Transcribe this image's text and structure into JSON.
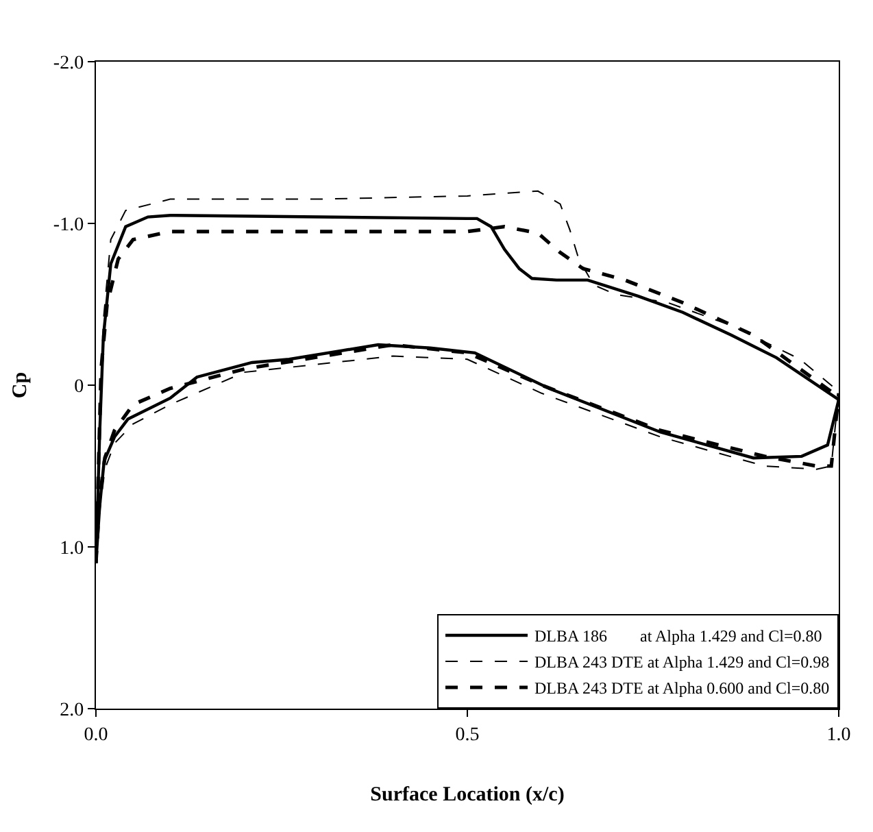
{
  "chart_data": {
    "type": "line",
    "xlabel": "Surface Location (x/c)",
    "ylabel": "Cp",
    "xlim": [
      0,
      1
    ],
    "ylim": [
      2.0,
      -2.0
    ],
    "xticks": [
      {
        "value": 0,
        "label": "0.0"
      },
      {
        "value": 0.5,
        "label": "0.5"
      },
      {
        "value": 1,
        "label": "1.0"
      }
    ],
    "yticks": [
      {
        "value": -2,
        "label": "-2.0"
      },
      {
        "value": -1,
        "label": "-1.0"
      },
      0,
      {
        "value": 1,
        "label": "1.0"
      },
      {
        "value": 2,
        "label": "2.0"
      }
    ],
    "legend": "bottom right",
    "marker": "none",
    "series": [
      {
        "name": "DLBA 186        at Alpha 1.429 and Cl=0.80",
        "color": "#000000",
        "line_style": "solid",
        "x": [
          0.0,
          0.005,
          0.01,
          0.02,
          0.04,
          0.07,
          0.1,
          0.3,
          0.5,
          0.513,
          0.532,
          0.55,
          0.57,
          0.587,
          0.62,
          0.662,
          0.73,
          0.79,
          0.855,
          0.916,
          1.0
        ],
        "values": [
          1.1,
          0.3,
          -0.3,
          -0.75,
          -0.98,
          -1.04,
          -1.05,
          -1.04,
          -1.03,
          -1.03,
          -0.98,
          -0.84,
          -0.72,
          -0.66,
          -0.65,
          -0.65,
          -0.55,
          -0.45,
          -0.31,
          -0.17,
          0.09
        ]
      },
      {
        "color": "#000000",
        "line_style": "solid",
        "x": [
          0.0,
          0.005,
          0.011,
          0.025,
          0.043,
          0.1,
          0.136,
          0.21,
          0.26,
          0.38,
          0.45,
          0.51,
          0.61,
          0.76,
          0.885,
          0.95,
          0.985,
          1.0
        ],
        "values": [
          1.1,
          0.75,
          0.47,
          0.32,
          0.21,
          0.08,
          -0.05,
          -0.14,
          -0.16,
          -0.25,
          -0.23,
          -0.2,
          0.02,
          0.29,
          0.45,
          0.44,
          0.37,
          0.09
        ]
      },
      {
        "name": "DLBA 243 DTE at Alpha 1.429 and Cl=0.98",
        "color": "#000000",
        "line_style": "dashed",
        "x": [
          0.0,
          0.005,
          0.01,
          0.02,
          0.04,
          0.1,
          0.3,
          0.5,
          0.595,
          0.625,
          0.638,
          0.65,
          0.67,
          0.7,
          0.77,
          0.855,
          0.948,
          1.0
        ],
        "values": [
          1.1,
          0.3,
          -0.4,
          -0.9,
          -1.08,
          -1.15,
          -1.15,
          -1.17,
          -1.2,
          -1.12,
          -0.96,
          -0.78,
          -0.62,
          -0.56,
          -0.51,
          -0.37,
          -0.16,
          0.04
        ]
      },
      {
        "color": "#000000",
        "line_style": "dashed",
        "x": [
          0.0,
          0.005,
          0.012,
          0.025,
          0.05,
          0.1,
          0.2,
          0.4,
          0.5,
          0.6,
          0.76,
          0.9,
          0.97,
          0.99,
          1.0
        ],
        "values": [
          1.1,
          0.78,
          0.52,
          0.36,
          0.24,
          0.12,
          -0.08,
          -0.18,
          -0.16,
          0.05,
          0.32,
          0.5,
          0.52,
          0.5,
          0.04
        ]
      },
      {
        "name": "DLBA 243 DTE at Alpha 0.600 and Cl=0.80",
        "color": "#000000",
        "line_style": "dashed",
        "x": [
          0.0,
          0.007,
          0.015,
          0.03,
          0.05,
          0.1,
          0.3,
          0.5,
          0.55,
          0.595,
          0.625,
          0.656,
          0.712,
          0.79,
          0.885,
          0.99,
          1.0
        ],
        "values": [
          1.1,
          -0.1,
          -0.5,
          -0.78,
          -0.9,
          -0.95,
          -0.95,
          -0.95,
          -0.98,
          -0.94,
          -0.82,
          -0.72,
          -0.65,
          -0.51,
          -0.31,
          0.04,
          0.05
        ]
      },
      {
        "color": "#000000",
        "line_style": "dashed",
        "x": [
          0.0,
          0.005,
          0.012,
          0.025,
          0.05,
          0.1,
          0.2,
          0.4,
          0.5,
          0.6,
          0.76,
          0.9,
          0.97,
          0.99,
          1.0
        ],
        "values": [
          1.1,
          0.7,
          0.45,
          0.28,
          0.12,
          0.02,
          -0.1,
          -0.25,
          -0.2,
          0.0,
          0.28,
          0.44,
          0.5,
          0.5,
          0.05
        ]
      }
    ]
  }
}
